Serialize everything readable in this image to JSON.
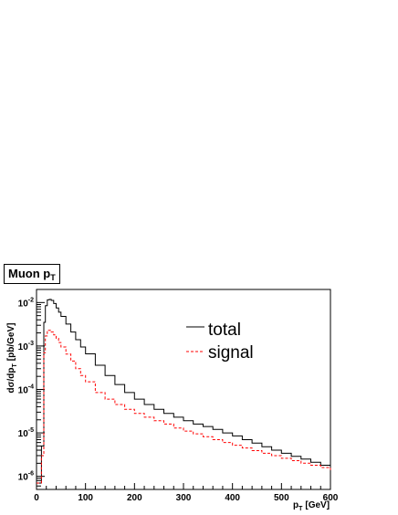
{
  "chart_data": {
    "type": "line",
    "title": "Muon p",
    "title_sub": "T",
    "xlabel": "p",
    "xlabel_sub": "T",
    "xlabel_unit": "[GeV]",
    "ylabel": "dσ/dp",
    "ylabel_sub": "T",
    "ylabel_unit": "[pb/GeV]",
    "xlim": [
      0,
      600
    ],
    "ylim": [
      5e-07,
      0.02
    ],
    "yscale": "log",
    "grid": false,
    "legend_position": "top-right",
    "x_ticks": [
      0,
      100,
      200,
      300,
      400,
      500,
      600
    ],
    "y_ticks": [
      {
        "value": 1e-06,
        "base": "10",
        "exp": "-6"
      },
      {
        "value": 1e-05,
        "base": "10",
        "exp": "-5"
      },
      {
        "value": 0.0001,
        "base": "10",
        "exp": "-4"
      },
      {
        "value": 0.001,
        "base": "10",
        "exp": "-3"
      },
      {
        "value": 0.01,
        "base": "10",
        "exp": "-2"
      }
    ],
    "series": [
      {
        "name": "total",
        "color": "#000000",
        "style": "solid",
        "x": [
          0,
          5,
          10,
          15,
          18,
          22,
          26,
          30,
          35,
          40,
          45,
          50,
          60,
          70,
          80,
          90,
          100,
          120,
          140,
          160,
          180,
          200,
          220,
          240,
          260,
          280,
          300,
          320,
          340,
          360,
          380,
          400,
          420,
          440,
          460,
          480,
          500,
          520,
          540,
          560,
          580,
          600
        ],
        "values": [
          7e-07,
          7e-07,
          5e-06,
          0.0035,
          0.0085,
          0.0115,
          0.0118,
          0.0112,
          0.0095,
          0.0075,
          0.006,
          0.0048,
          0.0032,
          0.0021,
          0.0014,
          0.00095,
          0.00066,
          0.00036,
          0.00021,
          0.00013,
          8.5e-05,
          6e-05,
          4.5e-05,
          3.5e-05,
          2.8e-05,
          2.3e-05,
          1.9e-05,
          1.6e-05,
          1.4e-05,
          1.2e-05,
          1e-05,
          8.5e-06,
          7e-06,
          5.8e-06,
          4.8e-06,
          4e-06,
          3.4e-06,
          2.9e-06,
          2.5e-06,
          2.1e-06,
          1.8e-06,
          1.6e-06
        ]
      },
      {
        "name": "signal",
        "color": "#ff0000",
        "style": "dashed",
        "x": [
          0,
          5,
          10,
          15,
          18,
          22,
          26,
          30,
          35,
          40,
          45,
          50,
          60,
          70,
          80,
          90,
          100,
          120,
          140,
          160,
          180,
          200,
          220,
          240,
          260,
          280,
          300,
          320,
          340,
          360,
          380,
          400,
          420,
          440,
          460,
          480,
          500,
          520,
          540,
          560,
          580,
          600
        ],
        "values": [
          7e-07,
          7e-07,
          3e-06,
          0.0007,
          0.0017,
          0.0023,
          0.0023,
          0.0021,
          0.0018,
          0.0015,
          0.0012,
          0.00095,
          0.00065,
          0.00045,
          0.0003,
          0.00021,
          0.00015,
          8.5e-05,
          6e-05,
          4.5e-05,
          3.5e-05,
          2.8e-05,
          2.3e-05,
          1.9e-05,
          1.6e-05,
          1.3e-05,
          1.1e-05,
          9.5e-06,
          8.2e-06,
          7e-06,
          6e-06,
          5.2e-06,
          4.5e-06,
          3.9e-06,
          3.4e-06,
          3e-06,
          2.6e-06,
          2.3e-06,
          2e-06,
          1.8e-06,
          1.6e-06,
          1.4e-06
        ]
      }
    ]
  }
}
